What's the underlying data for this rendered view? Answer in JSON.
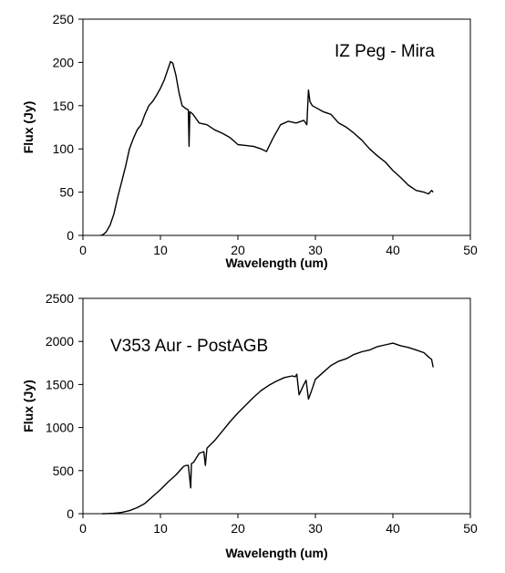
{
  "chart_data": [
    {
      "type": "line",
      "title": "",
      "annotation": "IZ Peg - Mira",
      "xlabel": "Wavelength (um)",
      "ylabel": "Flux (Jy)",
      "xlim": [
        0,
        50
      ],
      "ylim": [
        0,
        250
      ],
      "xticks": [
        "0",
        "10",
        "20",
        "30",
        "40",
        "50"
      ],
      "yticks": [
        "0",
        "50",
        "100",
        "150",
        "200",
        "250"
      ],
      "grid": false,
      "legend": "none",
      "line_color": "#000000",
      "series": [
        {
          "x": [
            2.3,
            2.6,
            3,
            3.5,
            4,
            4.5,
            5,
            5.5,
            6,
            6.5,
            7,
            7.5,
            8,
            8.5,
            9,
            9.5,
            10,
            10.5,
            11,
            11.3,
            11.6,
            12,
            12.4,
            12.8,
            13.2,
            13.6,
            13.7,
            13.8,
            14.2,
            15,
            16,
            17,
            18,
            19,
            20,
            21,
            22,
            23,
            23.7,
            24.5,
            25.5,
            26.5,
            27.5,
            28.5,
            28.9,
            29.1,
            29.3,
            29.6,
            30,
            31,
            32,
            33,
            34,
            35,
            36,
            37,
            38,
            39,
            40,
            41,
            42,
            43,
            44,
            44.6,
            45,
            45.2
          ],
          "y": [
            0,
            1,
            4,
            12,
            25,
            45,
            62,
            80,
            100,
            112,
            122,
            128,
            140,
            150,
            155,
            162,
            170,
            180,
            193,
            201,
            199,
            185,
            165,
            150,
            147,
            145,
            103,
            143,
            140,
            130,
            128,
            122,
            118,
            113,
            105,
            104,
            103,
            100,
            97,
            112,
            128,
            132,
            130,
            133,
            128,
            168,
            155,
            150,
            148,
            143,
            140,
            130,
            125,
            118,
            110,
            100,
            92,
            85,
            75,
            67,
            58,
            52,
            50,
            48,
            52,
            50
          ]
        }
      ]
    },
    {
      "type": "line",
      "title": "",
      "annotation": "V353 Aur - PostAGB",
      "xlabel": "Wavelength (um)",
      "ylabel": "Flux (Jy)",
      "xlim": [
        0,
        50
      ],
      "ylim": [
        0,
        2500
      ],
      "xticks": [
        "0",
        "10",
        "20",
        "30",
        "40",
        "50"
      ],
      "yticks": [
        "0",
        "500",
        "1000",
        "1500",
        "2000",
        "2500"
      ],
      "grid": false,
      "legend": "none",
      "line_color": "#000000",
      "series": [
        {
          "x": [
            2.5,
            3,
            4,
            5,
            6,
            7,
            8,
            9,
            10,
            11,
            12,
            13,
            13.3,
            13.6,
            13.9,
            14,
            14.3,
            15,
            15.6,
            15.8,
            16,
            17,
            18,
            19,
            20,
            21,
            22,
            23,
            24,
            25,
            26,
            27,
            27.4,
            27.6,
            27.9,
            28.2,
            28.5,
            28.8,
            29.1,
            29.4,
            30,
            31,
            32,
            33,
            34,
            35,
            36,
            37,
            38,
            39,
            40,
            41,
            42,
            43,
            44,
            44.6,
            45,
            45.2
          ],
          "y": [
            0,
            1,
            5,
            15,
            35,
            70,
            120,
            200,
            280,
            370,
            450,
            550,
            560,
            560,
            300,
            580,
            600,
            700,
            720,
            560,
            760,
            850,
            960,
            1070,
            1170,
            1260,
            1350,
            1430,
            1490,
            1540,
            1580,
            1600,
            1590,
            1620,
            1380,
            1440,
            1500,
            1550,
            1330,
            1400,
            1560,
            1640,
            1720,
            1770,
            1800,
            1850,
            1880,
            1900,
            1940,
            1960,
            1980,
            1950,
            1930,
            1900,
            1870,
            1820,
            1790,
            1700
          ]
        }
      ]
    }
  ]
}
